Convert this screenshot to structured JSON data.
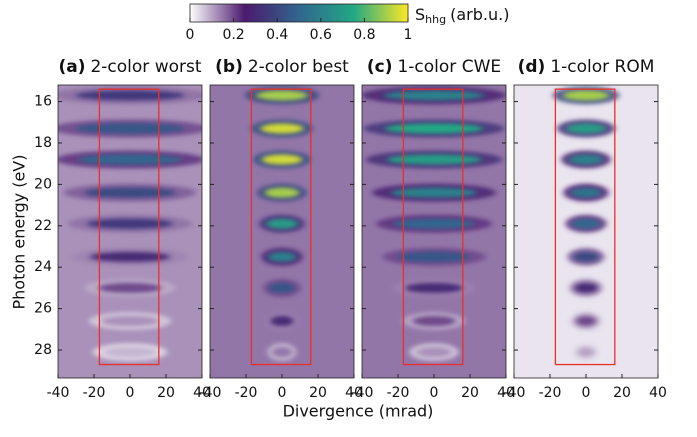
{
  "chart_data": {
    "type": "harmonic-map",
    "colorbar_label": "S",
    "colorbar_label_sub": "hhg",
    "colorbar_label_unit": "(arb.u.)",
    "colormap": [
      "#ffffff",
      "#4b1a6e",
      "#31668e",
      "#22a884",
      "#fde725"
    ],
    "clim": [
      0,
      1
    ],
    "cticks": [
      0,
      0.2,
      0.4,
      0.6,
      0.8,
      1
    ],
    "x_label": "Divergence (mrad)",
    "y_label": "Photon energy (eV)",
    "xlim": [
      -40,
      40
    ],
    "xticks": [
      -40,
      -20,
      0,
      20,
      40
    ],
    "ylim": [
      15.2,
      29.35
    ],
    "yticks": [
      16,
      18,
      20,
      22,
      24,
      26,
      28
    ],
    "energies": [
      15.7,
      17.3,
      18.8,
      20.4,
      21.9,
      23.5,
      25.0,
      26.6,
      28.1
    ],
    "roi": {
      "x": [
        -17,
        16
      ],
      "y": [
        15.4,
        28.7
      ],
      "color": "#e8302a"
    },
    "panels": [
      {
        "label": "(a)",
        "title": "2-color worst",
        "background": 0.12,
        "values": [
          0.35,
          0.45,
          0.5,
          0.4,
          0.35,
          0.3,
          0.2,
          0.12,
          0.08
        ],
        "widths": [
          38,
          38,
          36,
          32,
          30,
          28,
          22,
          20,
          18
        ]
      },
      {
        "label": "(b)",
        "title": "2-color best",
        "background": 0.15,
        "values": [
          0.9,
          0.95,
          0.95,
          0.9,
          0.7,
          0.6,
          0.45,
          0.3,
          0.15
        ],
        "widths": [
          18,
          15,
          14,
          12,
          11,
          10,
          9,
          8,
          7
        ]
      },
      {
        "label": "(c)",
        "title": "1-color CWE",
        "background": 0.15,
        "values": [
          0.6,
          0.75,
          0.7,
          0.6,
          0.5,
          0.45,
          0.3,
          0.2,
          0.12
        ],
        "widths": [
          35,
          34,
          33,
          30,
          28,
          25,
          20,
          15,
          12
        ]
      },
      {
        "label": "(d)",
        "title": "1-color ROM",
        "background": 0.03,
        "values": [
          0.9,
          0.7,
          0.6,
          0.55,
          0.5,
          0.4,
          0.3,
          0.2,
          0.1
        ],
        "widths": [
          16,
          14,
          12,
          11,
          10,
          9,
          8,
          7,
          6
        ]
      }
    ]
  }
}
